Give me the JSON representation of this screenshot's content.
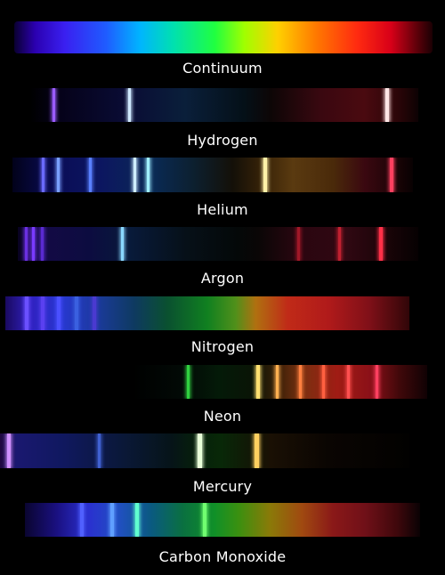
{
  "spectra": [
    {
      "id": "continuum",
      "name": "Continuum",
      "background": "linear-gradient(to right, #0a0030 0%, #2b00b0 5%, #3a1ff0 12%, #1f5cff 22%, #00b4ff 30%, #00e0b0 38%, #20ff40 48%, #a0ff00 55%, #ffd000 63%, #ff7a00 72%, #ff2a10 82%, #d80018 90%, #500008 97%, #1a0004 100%)",
      "lines": []
    },
    {
      "id": "hydrogen",
      "name": "Hydrogen",
      "background": "linear-gradient(to right, #000000 0%, #05021a 8%, #0a0c35 25%, #0a1f3a 40%, #041018 55%, #0d0606 62%, #3a0810 75%, #4a0a10 86%, #2a0508 95%, #0d0203 100%)",
      "lines": [
        {
          "color": "#9a5cff"
        },
        {
          "color": "#cfe8ff"
        },
        {
          "color": "#ffe6e6"
        }
      ]
    },
    {
      "id": "helium",
      "name": "Helium",
      "background": "linear-gradient(to right, #02021a 0%, #0a0c55 10%, #0c1660 22%, #0a2a55 35%, #0c2030 45%, #141008 55%, #3a2408 63%, #5a3a10 70%, #4a2a0a 80%, #3a0810 88%, #1a0406 96%, #080102 100%)",
      "lines": [
        {
          "color": "#6a6aff"
        },
        {
          "color": "#7aa0ff"
        },
        {
          "color": "#5a80ff"
        },
        {
          "color": "#cfeeff"
        },
        {
          "color": "#a0f0ff"
        },
        {
          "color": "#fff2a8"
        },
        {
          "color": "#ff4060"
        }
      ]
    },
    {
      "id": "argon",
      "name": "Argon",
      "background": "linear-gradient(to right, #080220 0%, #140a45 6%, #0c0c40 18%, #081a3a 28%, #061018 42%, #040808 55%, #0a0606 60%, #2a0610 70%, #300812 82%, #1a0408 92%, #060102 100%)",
      "lines": [
        {
          "color": "#6a30e0"
        },
        {
          "color": "#7a3aff"
        },
        {
          "color": "#5a2ad0"
        },
        {
          "color": "#8ad8ff"
        },
        {
          "color": "#a01828"
        },
        {
          "color": "#c02030"
        },
        {
          "color": "#ff3048"
        }
      ]
    },
    {
      "id": "nitrogen",
      "name": "Nitrogen",
      "background": "linear-gradient(to right, #1a0a60 0%, #3020c0 6%, #2838d0 14%, #1c3aa0 22%, #0e3a60 32%, #0a5030 40%, #108020 50%, #50901a 57%, #b07010 62%, #c02a18 70%, #b01a1a 80%, #801018 90%, #300608 100%)",
      "lines": [
        {
          "color": "#6a50ff"
        },
        {
          "color": "#5a40f0"
        },
        {
          "color": "#4a50ff"
        },
        {
          "color": "#3a60e0"
        },
        {
          "color": "#4a3ad0"
        }
      ]
    },
    {
      "id": "neon",
      "name": "Neon",
      "background": "linear-gradient(to right, #000000 0%, #000000 15%, #020a06 30%, #041a08 40%, #0a1406 50%, #3a2008 57%, #7a3010 64%, #a01c14 74%, #8a1018 84%, #40080a 92%, #100204 100%)",
      "lines": [
        {
          "color": "#30d040"
        },
        {
          "color": "#ffe070"
        },
        {
          "color": "#ffb050"
        },
        {
          "color": "#ff8040"
        },
        {
          "color": "#ff6040"
        },
        {
          "color": "#ff5050"
        },
        {
          "color": "#ff4060"
        }
      ]
    },
    {
      "id": "mercury",
      "name": "Mercury",
      "background": "linear-gradient(to right, #200840 0%, #1a1870 4%, #101860 15%, #0a1838 30%, #061418 42%, #06200a 48%, #082808 54%, #101a06 60%, #1a1004 66%, #0a0502 80%, #020100 100%)",
      "lines": [
        {
          "color": "#d090ff"
        },
        {
          "color": "#4060d0"
        },
        {
          "color": "#e8ffd8"
        },
        {
          "color": "#ffd060"
        }
      ]
    },
    {
      "id": "carbon-monoxide",
      "name": "Carbon Monoxide",
      "background": "linear-gradient(to right, #0a0530 0%, #1a1080 8%, #2a30d0 16%, #2050c0 24%, #0a5a80 32%, #0a7040 40%, #109028 48%, #3a9010 54%, #8a7a08 62%, #a04a10 70%, #8a1818 78%, #701018 86%, #40080c 94%, #0a0204 100%)",
      "lines": [
        {
          "color": "#5060ff"
        },
        {
          "color": "#60a0ff"
        },
        {
          "color": "#60ffd0"
        },
        {
          "color": "#70ff70"
        }
      ]
    }
  ]
}
